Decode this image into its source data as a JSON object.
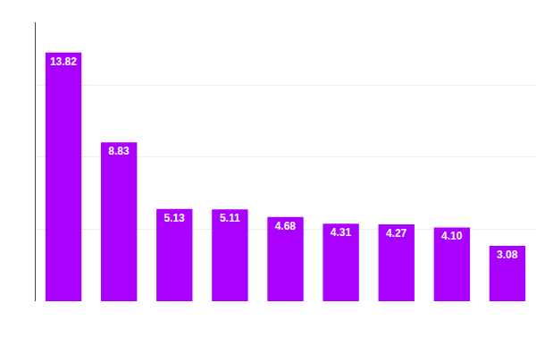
{
  "chart_data": {
    "type": "bar",
    "categories": [
      null,
      null,
      null,
      null,
      null,
      null,
      null,
      null,
      null
    ],
    "values": [
      13.82,
      8.83,
      5.13,
      5.11,
      4.68,
      4.31,
      4.27,
      4.1,
      3.08
    ],
    "value_labels": [
      "13.82",
      "8.83",
      "5.13",
      "5.11",
      "4.68",
      "4.31",
      "4.27",
      "4.10",
      "3.08"
    ],
    "color": "#aa00ff",
    "ylim": [
      0,
      15.5
    ],
    "yticks": [
      0,
      4,
      8,
      12
    ],
    "grid": true,
    "data_labels": true,
    "tick_labels": false
  }
}
